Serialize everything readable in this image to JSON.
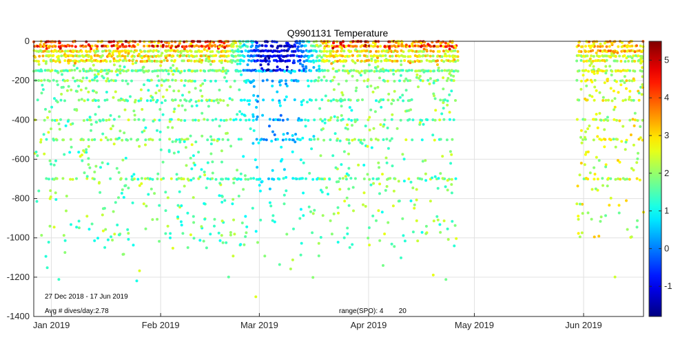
{
  "chart_data": {
    "type": "scatter",
    "title": "Q9901131 Temperature",
    "xlabel": "",
    "ylabel": "",
    "x_ticks": [
      {
        "label": "Jan 2019",
        "day": 5
      },
      {
        "label": "Feb 2019",
        "day": 36
      },
      {
        "label": "Mar 2019",
        "day": 64
      },
      {
        "label": "Apr 2019",
        "day": 95
      },
      {
        "label": "May 2019",
        "day": 125
      },
      {
        "label": "Jun 2019",
        "day": 156
      }
    ],
    "xlim_days": [
      0,
      173
    ],
    "ylim": [
      -1400,
      0
    ],
    "y_ticks": [
      0,
      -200,
      -400,
      -600,
      -800,
      -1000,
      -1200,
      -1400
    ],
    "y_tick_labels": [
      "0",
      "-200",
      "-400",
      "-600",
      "-800",
      "-1000",
      "-1200",
      "-1400"
    ],
    "grid": true,
    "colorbar": {
      "range": [
        -1.8,
        5.5
      ],
      "ticks": [
        -1,
        0,
        1,
        2,
        3,
        4,
        5
      ],
      "tick_labels": [
        "-1",
        "0",
        "1",
        "2",
        "3",
        "4",
        "5"
      ],
      "colormap": "jet"
    },
    "sampling": {
      "active_periods_days": [
        [
          0,
          120
        ],
        [
          154,
          173
        ]
      ],
      "gap_days": [
        120,
        154
      ],
      "standard_depths": [
        0,
        -25,
        -50,
        -75,
        -100,
        -150,
        -200,
        -300,
        -400,
        -500,
        -700
      ],
      "cold_intrusion_days": [
        54,
        84
      ],
      "cold_intrusion_temp": -1.5,
      "surface_temp_range": [
        2,
        5
      ],
      "deep_temp_range": [
        0.5,
        2.5
      ],
      "max_depth_observed": -1300
    },
    "annotations": {
      "date_range": "27 Dec 2018 - 17 Jun 2019",
      "avg_dives": "Avg # dives/day:2.78",
      "range_spo": "range(SPO): 4        20"
    }
  }
}
